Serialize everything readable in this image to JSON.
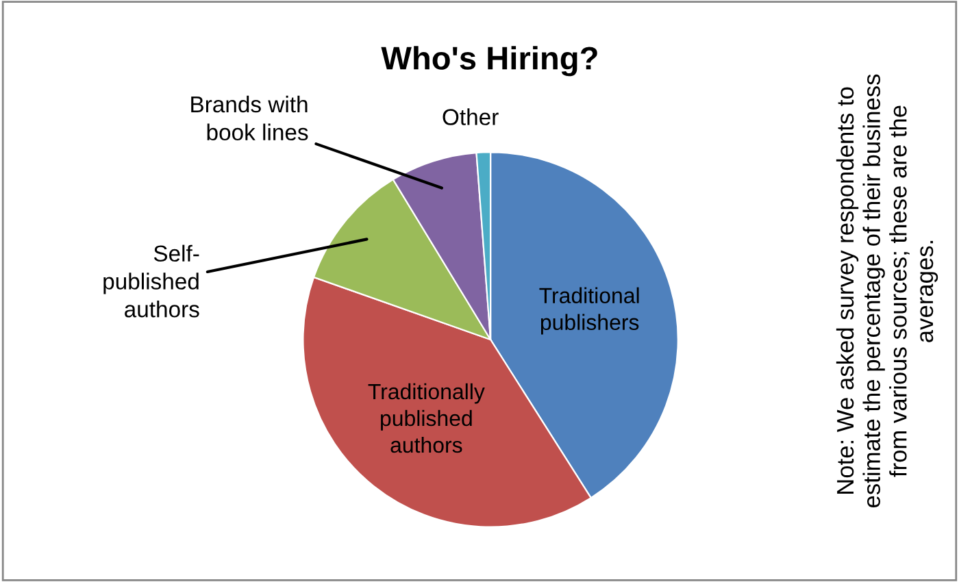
{
  "chart_data": {
    "type": "pie",
    "title": "Who's Hiring?",
    "categories": [
      "Traditional\npublishers",
      "Traditionally\npublished\nauthors",
      "Self-\npublished\nauthors",
      "Brands with\nbook lines",
      "Other"
    ],
    "values": [
      41,
      39.4,
      10.9,
      7.5,
      1.2
    ],
    "colors": [
      "#4f81bd",
      "#c0504d",
      "#9bbb59",
      "#8064a2",
      "#4bacc6"
    ],
    "annotations": [
      "Note: We asked survey respondents to\nestimate the percentage of their business\nfrom various sources; these are the\naverages."
    ],
    "legend": false
  }
}
